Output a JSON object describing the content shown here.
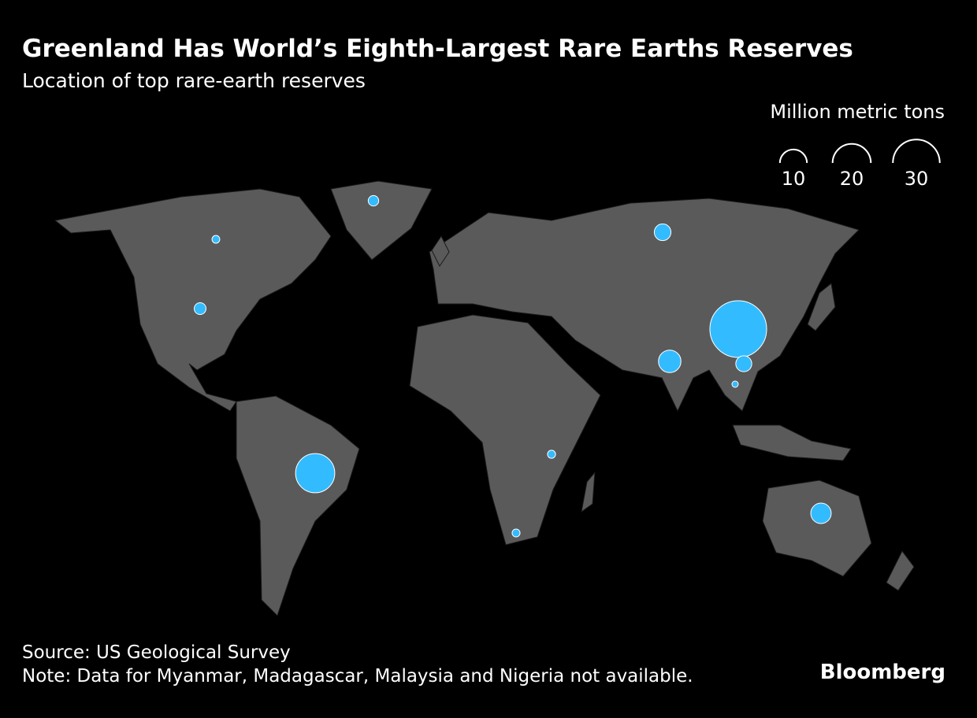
{
  "chart_data": {
    "type": "bubble-map",
    "title": "Greenland Has World’s Eighth-Largest Rare Earths Reserves",
    "subtitle": "Location of top rare-earth reserves",
    "legend": {
      "title": "Million metric tons",
      "sizes": [
        10,
        20,
        30
      ]
    },
    "values": [
      44,
      21,
      6.9,
      5.7,
      3.8,
      3.5,
      1.9,
      1.5,
      0.89,
      0.86,
      0.83,
      0.0045
    ],
    "color": "#33bbff",
    "source": "Source: US Geological Survey",
    "note": "Note: Data for Myanmar, Madagascar, Malaysia and Nigeria not available.",
    "brand": "Bloomberg"
  }
}
